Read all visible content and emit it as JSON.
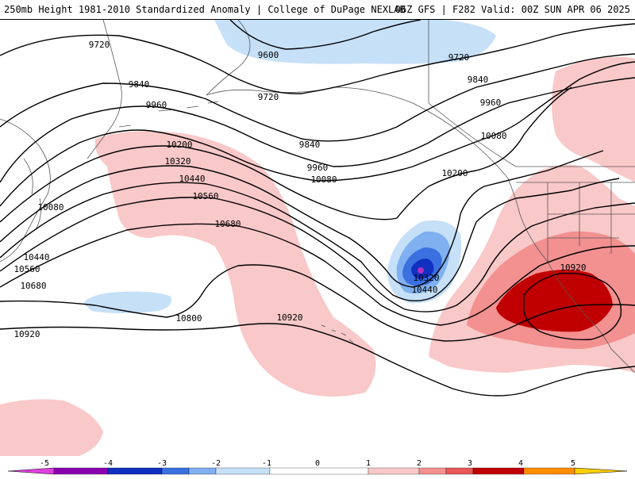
{
  "header": {
    "title_left": "250mb Height 1981-2010 Standardized Anomaly | College of DuPage NEXLAB",
    "title_right": "06Z GFS | F282 Valid: 00Z SUN APR 06 2025"
  },
  "contour_labels": [
    "9600",
    "9720",
    "9720",
    "9720",
    "9840",
    "9840",
    "9840",
    "9960",
    "9960",
    "9960",
    "10080",
    "10080",
    "10080",
    "10200",
    "10200",
    "10320",
    "10320",
    "10440",
    "10440",
    "10440",
    "10560",
    "10560",
    "10680",
    "10680",
    "10800",
    "10920",
    "10920",
    "10920"
  ],
  "colorbar": {
    "tick_labels": [
      "-5",
      "-4",
      "-3",
      "-2",
      "-1",
      "0",
      "1",
      "2",
      "3",
      "4",
      "5"
    ],
    "colors": {
      "neg5": "#e040e0",
      "neg4": "#8a00b0",
      "neg3": "#1030c0",
      "neg2": "#3a70e0",
      "neg1_5": "#80b0f0",
      "neg1": "#c6e0f8",
      "zero": "#ffffff",
      "pos1": "#f9c8c8",
      "pos1_5": "#f39090",
      "pos2": "#e85858",
      "pos3": "#c00000",
      "pos4": "#ff8c00",
      "pos5": "#ffd000"
    }
  },
  "map_colors": {
    "land_outline": "#555555",
    "contour": "#000000",
    "low_center": "#b030c0"
  }
}
